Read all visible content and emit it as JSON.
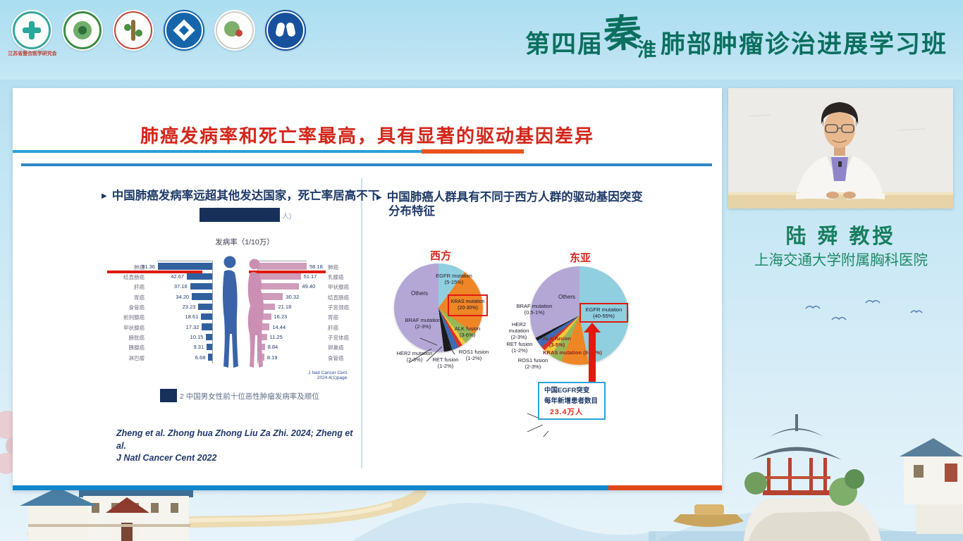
{
  "header": {
    "title_prefix": "第四届",
    "title_brush1": "秦",
    "title_brush2": "淮",
    "title_suffix": "肺部肿瘤诊治进展学习班",
    "logo_caption": "江苏省整合医学研究会"
  },
  "slide": {
    "title": "肺癌发病率和死亡率最高，具有显著的驱动基因差异",
    "bullet_marker": "▶",
    "left_bullet": "中国肺癌发病率远超其他发达国家，死亡率居高不下",
    "redaction_suffix": "人)",
    "figure_caption": "2 中国男女性前十位恶性肿瘤发病率及顺位",
    "source_note": "J Natl Cancer Cent. 2024.4(1)page.",
    "citation_line1": "Zheng et al. Zhong hua Zhong Liu Za Zhi. 2024; Zheng et al.",
    "citation_line2": "J Natl Cancer Cent 2022",
    "right_bullet_line1": "中国肺癌人群具有不同于西方人群的驱动基因突变",
    "right_bullet_line2": "分布特征",
    "egfr_note": {
      "line1": "中国EGFR突变",
      "line2": "每年新增患者数目",
      "line3": "23.4万人"
    }
  },
  "speaker": {
    "name": "陆 舜 教授",
    "affiliation": "上海交通大学附属胸科医院"
  },
  "chart_data": [
    {
      "type": "bar",
      "orientation": "horizontal",
      "group": "男性",
      "title": "发病率（1/10万）",
      "categories": [
        "肺癌",
        "结直肠癌",
        "肝癌",
        "胃癌",
        "食管癌",
        "前列腺癌",
        "甲状腺癌",
        "膀胱癌",
        "胰腺癌",
        "淋巴瘤"
      ],
      "values": [
        91.36,
        42.67,
        37.16,
        34.2,
        23.23,
        18.61,
        17.32,
        10.15,
        9.31,
        6.68
      ],
      "bar_color": "#31609f",
      "highlight": "肺癌",
      "highlight_color": "#dd1a0e"
    },
    {
      "type": "bar",
      "orientation": "horizontal",
      "group": "女性",
      "title": "发病率（1/10万）",
      "categories": [
        "肺癌",
        "乳腺癌",
        "甲状腺癌",
        "结直肠癌",
        "子宫颈癌",
        "胃癌",
        "肝癌",
        "子宫体癌",
        "卵巢癌",
        "食管癌"
      ],
      "values": [
        58.18,
        51.17,
        49.4,
        30.32,
        21.18,
        16.23,
        14.44,
        11.25,
        8.84,
        8.19
      ],
      "bar_color": "#cf9cba",
      "highlight": "肺癌",
      "highlight_color": "#dd1a0e"
    },
    {
      "type": "pie",
      "title": "西方",
      "slices": [
        {
          "label": "EGFR mutation",
          "range": "(5-15%)",
          "value": 10,
          "color": "#90cfdf"
        },
        {
          "label": "KRAS mutation",
          "range": "(20-30%)",
          "value": 25,
          "color": "#ef8626",
          "highlighted": true
        },
        {
          "label": "ALK fusion",
          "range": "(3-6%)",
          "value": 4.5,
          "color": "#97b659"
        },
        {
          "label": "ROS1 fusion",
          "range": "(1-2%)",
          "value": 1.5,
          "color": "#f3c83d"
        },
        {
          "label": "RET fusion",
          "range": "(1-2%)",
          "value": 1.5,
          "color": "#d93425"
        },
        {
          "label": "BRAF mutation",
          "range": "(2-3%)",
          "value": 2.5,
          "color": "#3d6cb3"
        },
        {
          "label": "HER2 mutation",
          "range": "(2-3%)",
          "value": 3,
          "color": "#1a1a1a"
        },
        {
          "label": "Others",
          "range": "",
          "value": 52,
          "color": "#b4a7d6"
        }
      ]
    },
    {
      "type": "pie",
      "title": "东亚",
      "slices": [
        {
          "label": "EGFR mutation",
          "range": "(40-55%)",
          "value": 47,
          "color": "#8fcfdf",
          "highlighted": true
        },
        {
          "label": "KRAS mutation",
          "range": "(8-10%)",
          "value": 9,
          "color": "#ef8626"
        },
        {
          "label": "ALK fusion",
          "range": "(3-5%)",
          "value": 4,
          "color": "#97b659"
        },
        {
          "label": "ROS1 fusion",
          "range": "(2-3%)",
          "value": 2.5,
          "color": "#f3c83d"
        },
        {
          "label": "RET fusion",
          "range": "(1-2%)",
          "value": 1.5,
          "color": "#d93425"
        },
        {
          "label": "HER2 mutation",
          "range": "(2-3%)",
          "value": 2.5,
          "color": "#3d6cb3"
        },
        {
          "label": "BRAF mutation",
          "range": "(0.5-1%)",
          "value": 1,
          "color": "#1a1a1a"
        },
        {
          "label": "Others",
          "range": "",
          "value": 32.5,
          "color": "#b4a7d6"
        }
      ]
    }
  ]
}
